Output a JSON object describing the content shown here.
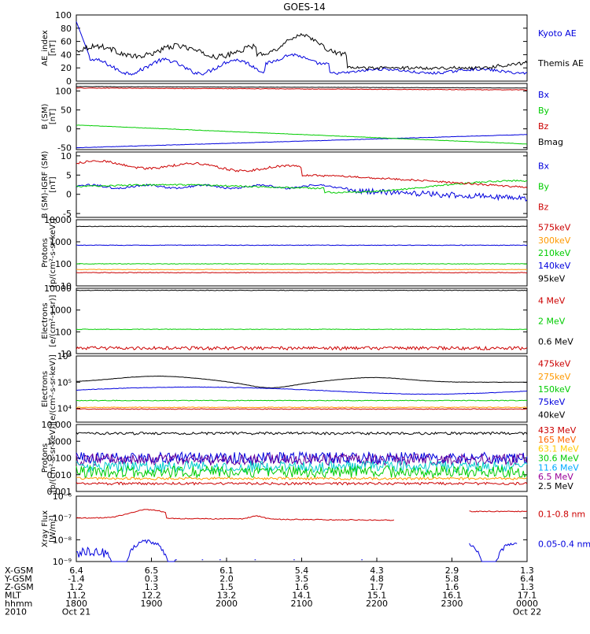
{
  "chart_data": {
    "type": "line",
    "title": "GOES-14",
    "panels": [
      {
        "id": "ae",
        "ylabel": [
          "AE_index",
          "[nT]"
        ],
        "scale": "linear",
        "ylim": [
          0,
          100
        ],
        "yticks": [
          "0",
          "20",
          "40",
          "60",
          "80",
          "100"
        ],
        "yticks_v": [
          0,
          20,
          40,
          60,
          80,
          100
        ],
        "series": [
          {
            "name": "Kyoto AE",
            "color": "#0000dd",
            "label_color": "#0000dd",
            "gen": "kyoto"
          },
          {
            "name": "Themis AE",
            "color": "#000000",
            "label_color": "#000000",
            "gen": "themis"
          }
        ]
      },
      {
        "id": "bsm",
        "ylabel": [
          "B (SM)",
          "[nT]"
        ],
        "scale": "linear",
        "ylim": [
          -55,
          120
        ],
        "yticks": [
          "-50",
          "0",
          "50",
          "100"
        ],
        "yticks_v": [
          -50,
          0,
          50,
          100
        ],
        "series": [
          {
            "name": "Bx",
            "color": "#0000dd",
            "label_color": "#0000dd",
            "gen": "bx"
          },
          {
            "name": "By",
            "color": "#00cc00",
            "label_color": "#00cc00",
            "gen": "by"
          },
          {
            "name": "Bz",
            "color": "#cc0000",
            "label_color": "#cc0000",
            "gen": "bz"
          },
          {
            "name": "Bmag",
            "color": "#000000",
            "label_color": "#000000",
            "gen": "bmag"
          }
        ]
      },
      {
        "id": "bigrf",
        "ylabel": [
          "B (SM)-IGRF (SM)",
          "[nT]"
        ],
        "scale": "linear",
        "ylim": [
          -6,
          11
        ],
        "yticks": [
          "-5",
          "0",
          "5",
          "10"
        ],
        "yticks_v": [
          -5,
          0,
          5,
          10
        ],
        "series": [
          {
            "name": "Bx",
            "color": "#0000dd",
            "label_color": "#0000dd",
            "gen": "dbx"
          },
          {
            "name": "By",
            "color": "#00cc00",
            "label_color": "#00cc00",
            "gen": "dby"
          },
          {
            "name": "Bz",
            "color": "#cc0000",
            "label_color": "#cc0000",
            "gen": "dbz"
          }
        ]
      },
      {
        "id": "protons",
        "ylabel": [
          "Protons",
          "[p/(cm²-s-sr-keV)]"
        ],
        "scale": "log",
        "ylim": [
          10,
          10000
        ],
        "yticks": [
          "10",
          "100",
          "1000",
          "10000"
        ],
        "yticks_v": [
          10,
          100,
          1000,
          10000
        ],
        "series": [
          {
            "name": "575keV",
            "color": "#000000",
            "label_color": "#cc0000",
            "gen": "flat",
            "level": 5000
          },
          {
            "name": "300keV",
            "color": "#0000dd",
            "label_color": "#ff9900",
            "gen": "flat",
            "level": 700
          },
          {
            "name": "210keV",
            "color": "#00cc00",
            "label_color": "#00cc00",
            "gen": "flat",
            "level": 100
          },
          {
            "name": "140keV",
            "color": "#ff9900",
            "label_color": "#0000dd",
            "gen": "flat",
            "level": 55
          },
          {
            "name": "95keV",
            "color": "#cc0000",
            "label_color": "#000000",
            "gen": "flat",
            "level": 40
          }
        ]
      },
      {
        "id": "electrons",
        "ylabel": [
          "Electrons",
          "[e/(cm²-s-sr)]"
        ],
        "scale": "log",
        "ylim": [
          10,
          10000
        ],
        "yticks": [
          "10",
          "100",
          "1000",
          "10000"
        ],
        "yticks_v": [
          10,
          100,
          1000,
          10000
        ],
        "series": [
          {
            "name": "4 MeV",
            "color": "#cc0000",
            "label_color": "#cc0000",
            "gen": "noisy",
            "level": 18
          },
          {
            "name": "2 MeV",
            "color": "#00cc00",
            "label_color": "#00cc00",
            "gen": "flat",
            "level": 130
          },
          {
            "name": "0.6 MeV",
            "color": "#000000",
            "label_color": "#000000",
            "gen": "flat",
            "level": 8000
          }
        ]
      },
      {
        "id": "electrons-kev",
        "ylabel": [
          "Electrons",
          "[e/(cm²-s-sr-keV)]"
        ],
        "scale": "log",
        "ylim": [
          3000,
          1000000
        ],
        "yticks": [
          "10⁴",
          "10⁵",
          "10⁶"
        ],
        "yticks_v": [
          10000,
          100000,
          1000000
        ],
        "series": [
          {
            "name": "475keV",
            "color": "#000000",
            "label_color": "#cc0000",
            "gen": "hump",
            "level": 100000
          },
          {
            "name": "275keV",
            "color": "#0000dd",
            "label_color": "#ff9900",
            "gen": "hump2",
            "level": 50000
          },
          {
            "name": "150keV",
            "color": "#00cc00",
            "label_color": "#00cc00",
            "gen": "flat",
            "level": 20000
          },
          {
            "name": "75keV",
            "color": "#ff9900",
            "label_color": "#0000dd",
            "gen": "flat",
            "level": 11000
          },
          {
            "name": "40keV",
            "color": "#cc0000",
            "label_color": "#000000",
            "gen": "flat",
            "level": 9500
          }
        ]
      },
      {
        "id": "protons-mev",
        "ylabel": [
          "Protons",
          "[p/(cm²-s-sr-keV)]"
        ],
        "scale": "log",
        "ylim": [
          0.001,
          10
        ],
        "yticks": [
          "0.001",
          "0.010",
          "0.100",
          "1.000",
          "10.000"
        ],
        "yticks_v": [
          0.001,
          0.01,
          0.1,
          1,
          10
        ],
        "series": [
          {
            "name": "433 MeV",
            "color": "#000000",
            "label_color": "#cc0000",
            "gen": "noisy",
            "level": 3.0
          },
          {
            "name": "165 MeV",
            "color": "#0000dd",
            "label_color": "#ff6600",
            "gen": "spiky",
            "level": 0.1
          },
          {
            "name": "63.1 MeV",
            "color": "#660099",
            "label_color": "#ffcc00",
            "gen": "spiky",
            "level": 0.08
          },
          {
            "name": "30.6 MeV",
            "color": "#00cccc",
            "label_color": "#00cc00",
            "gen": "spiky",
            "level": 0.03
          },
          {
            "name": "11.6 MeV",
            "color": "#00cc00",
            "label_color": "#00aaff",
            "gen": "spiky",
            "level": 0.015
          },
          {
            "name": "6.5 MeV",
            "color": "#ff9900",
            "label_color": "#990099",
            "gen": "noisy",
            "level": 0.006
          },
          {
            "name": "2.5 MeV",
            "color": "#cc0000",
            "label_color": "#000000",
            "gen": "noisy",
            "level": 0.003
          }
        ]
      },
      {
        "id": "xray",
        "ylabel": [
          "Xray Flux",
          "[W/m²]"
        ],
        "scale": "log",
        "ylim": [
          1e-09,
          1e-06
        ],
        "yticks": [
          "10⁻⁶",
          "10⁻⁷",
          "10⁻⁸",
          "10⁻⁹"
        ],
        "yticks_v": [
          1e-06,
          1e-07,
          1e-08,
          1e-09
        ],
        "series": [
          {
            "name": "0.1-0.8 nm",
            "color": "#cc0000",
            "label_color": "#cc0000",
            "gen": "xlong"
          },
          {
            "name": "0.05-0.4 nm",
            "color": "#0000dd",
            "label_color": "#0000dd",
            "gen": "xshort"
          }
        ]
      }
    ],
    "x_axis": {
      "row_labels": [
        "X-GSM",
        "Y-GSM",
        "Z-GSM",
        "MLT",
        "hhmm",
        "2010"
      ],
      "columns": [
        [
          "6.4",
          "-1.4",
          "1.2",
          "11.2",
          "1800",
          "Oct 21"
        ],
        [
          "6.5",
          "0.3",
          "1.3",
          "12.2",
          "1900",
          ""
        ],
        [
          "6.1",
          "2.0",
          "1.5",
          "13.2",
          "2000",
          ""
        ],
        [
          "5.4",
          "3.5",
          "1.6",
          "14.1",
          "2100",
          ""
        ],
        [
          "4.3",
          "4.8",
          "1.7",
          "15.1",
          "2200",
          ""
        ],
        [
          "2.9",
          "5.8",
          "1.6",
          "16.1",
          "2300",
          ""
        ],
        [
          "1.3",
          "6.4",
          "1.3",
          "17.1",
          "0000",
          "Oct 22"
        ]
      ]
    }
  }
}
